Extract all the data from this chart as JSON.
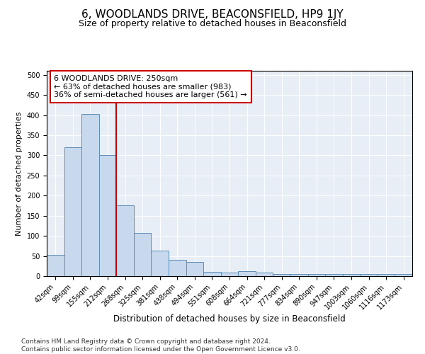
{
  "title": "6, WOODLANDS DRIVE, BEACONSFIELD, HP9 1JY",
  "subtitle": "Size of property relative to detached houses in Beaconsfield",
  "xlabel": "Distribution of detached houses by size in Beaconsfield",
  "ylabel": "Number of detached properties",
  "categories": [
    "42sqm",
    "99sqm",
    "155sqm",
    "212sqm",
    "268sqm",
    "325sqm",
    "381sqm",
    "438sqm",
    "494sqm",
    "551sqm",
    "608sqm",
    "664sqm",
    "721sqm",
    "777sqm",
    "834sqm",
    "890sqm",
    "947sqm",
    "1003sqm",
    "1060sqm",
    "1116sqm",
    "1173sqm"
  ],
  "values": [
    53,
    320,
    403,
    300,
    175,
    108,
    63,
    40,
    36,
    11,
    9,
    12,
    8,
    5,
    5,
    5,
    5,
    5,
    5,
    5,
    5
  ],
  "bar_color": "#c9d9ed",
  "bar_edge_color": "#5b8db8",
  "vline_color": "#cc0000",
  "vline_x_index": 3.5,
  "annotation_text": "6 WOODLANDS DRIVE: 250sqm\n← 63% of detached houses are smaller (983)\n36% of semi-detached houses are larger (561) →",
  "annotation_box_color": "#ffffff",
  "annotation_box_edge": "#cc0000",
  "ylim": [
    0,
    510
  ],
  "yticks": [
    0,
    50,
    100,
    150,
    200,
    250,
    300,
    350,
    400,
    450,
    500
  ],
  "background_color": "#e8eef5",
  "footer": "Contains HM Land Registry data © Crown copyright and database right 2024.\nContains public sector information licensed under the Open Government Licence v3.0.",
  "title_fontsize": 11,
  "subtitle_fontsize": 9,
  "xlabel_fontsize": 8.5,
  "ylabel_fontsize": 8,
  "tick_fontsize": 7,
  "annotation_fontsize": 8,
  "footer_fontsize": 6.5
}
